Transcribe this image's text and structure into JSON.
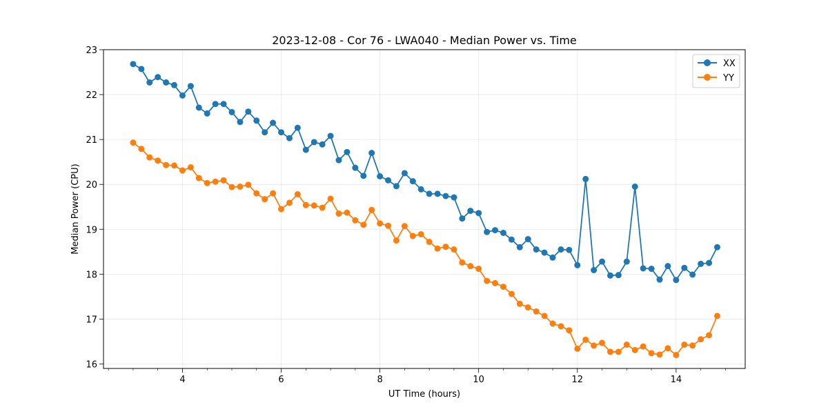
{
  "chart_data": {
    "type": "line",
    "title": "2023-12-08 - Cor 76 - LWA040 - Median Power vs. Time",
    "xlabel": "UT Time (hours)",
    "ylabel": "Median Power (CPU)",
    "xlim": [
      2.4,
      15.4
    ],
    "ylim": [
      15.9,
      23.0
    ],
    "xticks": [
      4,
      6,
      8,
      10,
      12,
      14
    ],
    "xtick_labels": [
      "4",
      "6",
      "8",
      "10",
      "12",
      "14"
    ],
    "xminor_step": 0.5,
    "yticks": [
      16,
      17,
      18,
      19,
      20,
      21,
      22,
      23
    ],
    "ytick_labels": [
      "16",
      "17",
      "18",
      "19",
      "20",
      "21",
      "22",
      "23"
    ],
    "grid": true,
    "legend_position": "top-right",
    "x": [
      3.0,
      3.167,
      3.333,
      3.5,
      3.667,
      3.833,
      4.0,
      4.167,
      4.333,
      4.5,
      4.667,
      4.833,
      5.0,
      5.167,
      5.333,
      5.5,
      5.667,
      5.833,
      6.0,
      6.167,
      6.333,
      6.5,
      6.667,
      6.833,
      7.0,
      7.167,
      7.333,
      7.5,
      7.667,
      7.833,
      8.0,
      8.167,
      8.333,
      8.5,
      8.667,
      8.833,
      9.0,
      9.167,
      9.333,
      9.5,
      9.667,
      9.833,
      10.0,
      10.167,
      10.333,
      10.5,
      10.667,
      10.833,
      11.0,
      11.167,
      11.333,
      11.5,
      11.667,
      11.833,
      12.0,
      12.167,
      12.333,
      12.5,
      12.667,
      12.833,
      13.0,
      13.167,
      13.333,
      13.5,
      13.667,
      13.833,
      14.0,
      14.167,
      14.333,
      14.5,
      14.667,
      14.833
    ],
    "series": [
      {
        "name": "XX",
        "color": "#1f77b4",
        "values": [
          22.68,
          22.57,
          22.27,
          22.39,
          22.27,
          22.21,
          21.98,
          22.19,
          21.71,
          21.58,
          21.79,
          21.79,
          21.61,
          21.39,
          21.62,
          21.42,
          21.16,
          21.37,
          21.16,
          21.03,
          21.26,
          20.77,
          20.94,
          20.89,
          21.08,
          20.54,
          20.72,
          20.37,
          20.19,
          20.7,
          20.18,
          20.09,
          19.96,
          20.25,
          20.07,
          19.89,
          19.79,
          19.79,
          19.74,
          19.71,
          19.24,
          19.41,
          19.36,
          18.94,
          18.98,
          18.92,
          18.77,
          18.6,
          18.78,
          18.55,
          18.48,
          18.37,
          18.55,
          18.54,
          18.2,
          20.12,
          18.09,
          18.28,
          17.97,
          17.98,
          18.28,
          19.95,
          18.13,
          18.12,
          17.88,
          18.18,
          17.87,
          18.14,
          17.99,
          18.23,
          18.25,
          18.6
        ]
      },
      {
        "name": "YY",
        "color": "#ff7f0e",
        "values": [
          20.93,
          20.79,
          20.6,
          20.53,
          20.43,
          20.42,
          20.31,
          20.38,
          20.14,
          20.03,
          20.06,
          20.09,
          19.94,
          19.95,
          19.99,
          19.8,
          19.67,
          19.8,
          19.45,
          19.59,
          19.78,
          19.54,
          19.53,
          19.48,
          19.68,
          19.35,
          19.37,
          19.2,
          19.1,
          19.43,
          19.13,
          19.08,
          18.75,
          19.07,
          18.85,
          18.89,
          18.72,
          18.57,
          18.61,
          18.55,
          18.26,
          18.18,
          18.12,
          17.85,
          17.8,
          17.72,
          17.56,
          17.34,
          17.26,
          17.17,
          17.07,
          16.9,
          16.84,
          16.75,
          16.34,
          16.54,
          16.41,
          16.47,
          16.27,
          16.27,
          16.43,
          16.31,
          16.39,
          16.24,
          16.21,
          16.35,
          16.2,
          16.43,
          16.41,
          16.55,
          16.64,
          17.07
        ]
      }
    ]
  }
}
